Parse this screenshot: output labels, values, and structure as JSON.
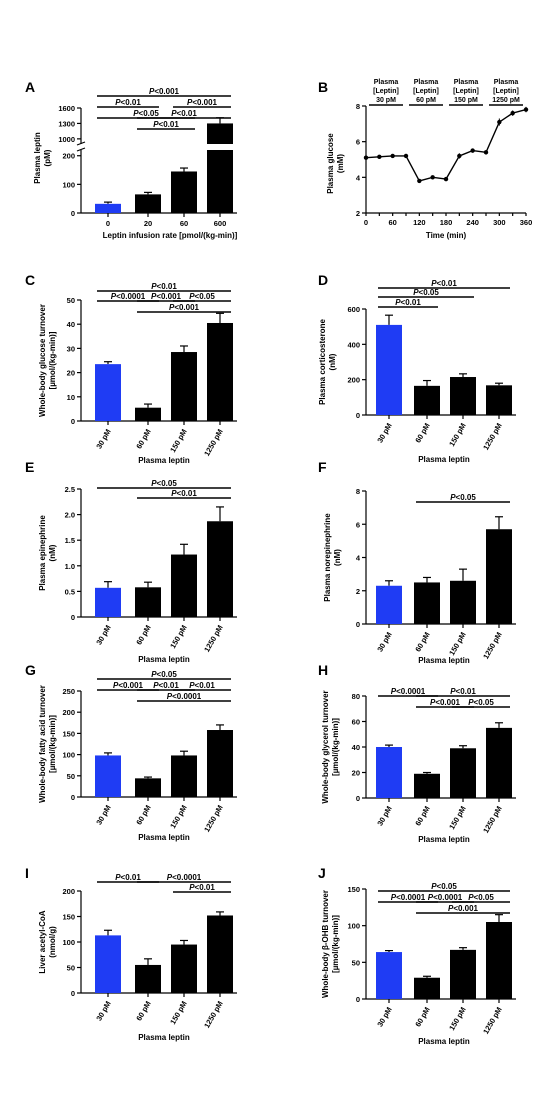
{
  "colors": {
    "blue": "#1f3cf4",
    "black": "#000000"
  },
  "chart_data": [
    {
      "panel": "A",
      "type": "bar",
      "categories": [
        "0",
        "20",
        "60",
        "600"
      ],
      "values": [
        32,
        65,
        145,
        1300
      ],
      "errors": [
        6,
        7,
        12,
        110
      ],
      "bar_colors": [
        "blue",
        "black",
        "black",
        "black"
      ],
      "xlabel": "Leptin infusion rate [pmol/(kg-min)]",
      "ylabel": "Plasma leptin",
      "yunit": "(pM)",
      "broken_axis": {
        "lower": [
          0,
          220
        ],
        "upper": [
          900,
          1600
        ]
      },
      "yticks": [
        "0",
        "100",
        "200",
        "1000",
        "1300",
        "1600"
      ],
      "sig": [
        {
          "from": 0,
          "to": 3,
          "label": "P<0.001"
        },
        {
          "from": 0,
          "to": 1,
          "label": "P<0.01"
        },
        {
          "from": 2,
          "to": 3,
          "label": "P<0.001"
        },
        {
          "from": 0,
          "to": 2,
          "label": "P<0.05"
        },
        {
          "from": 1,
          "to": 3,
          "label": "P<0.01"
        },
        {
          "from": 1,
          "to": 2,
          "label": "P<0.01"
        }
      ]
    },
    {
      "panel": "B",
      "type": "line",
      "x": [
        0,
        30,
        60,
        90,
        120,
        150,
        180,
        210,
        240,
        270,
        300,
        330,
        360
      ],
      "y": [
        5.1,
        5.15,
        5.2,
        5.2,
        3.8,
        4.0,
        3.9,
        5.2,
        5.5,
        5.4,
        7.1,
        7.6,
        7.8
      ],
      "errors": [
        0.15,
        0.1,
        0.08,
        0.08,
        0.08,
        0.08,
        0.08,
        0.15,
        0.12,
        0.1,
        0.2,
        0.15,
        0.15
      ],
      "xlabel": "Time (min)",
      "ylabel": "Plasma glucose",
      "yunit": "(mM)",
      "xlim": [
        0,
        360
      ],
      "ylim": [
        2,
        8
      ],
      "xticks": [
        "0",
        "30",
        "60",
        "90",
        "120",
        "150",
        "180",
        "210",
        "240",
        "270",
        "300",
        "330",
        "360"
      ],
      "yticks": [
        "2",
        "4",
        "6",
        "8"
      ],
      "phases": [
        {
          "from": 0,
          "to": 90,
          "lines": [
            "Plasma",
            "[Leptin]",
            "30 pM"
          ]
        },
        {
          "from": 90,
          "to": 180,
          "lines": [
            "Plasma",
            "[Leptin]",
            "60 pM"
          ]
        },
        {
          "from": 180,
          "to": 270,
          "lines": [
            "Plasma",
            "[Leptin]",
            "150 pM"
          ]
        },
        {
          "from": 270,
          "to": 360,
          "lines": [
            "Plasma",
            "[Leptin]",
            "1250 pM"
          ]
        }
      ]
    },
    {
      "panel": "C",
      "type": "bar",
      "categories": [
        "30 pM",
        "60 pM",
        "150 pM",
        "1250 pM"
      ],
      "values": [
        23.5,
        5.5,
        28.5,
        40.5
      ],
      "errors": [
        1,
        1.5,
        2.5,
        4
      ],
      "bar_colors": [
        "blue",
        "black",
        "black",
        "black"
      ],
      "xlabel": "Plasma leptin",
      "ylabel": "Whole-body glucose turnover",
      "yunit": "[µmol/(kg-min)]",
      "ylim": [
        0,
        50
      ],
      "yticks": [
        "0",
        "10",
        "20",
        "30",
        "40",
        "50"
      ],
      "sig": [
        {
          "from": 0,
          "to": 3,
          "label": "P<0.01"
        },
        {
          "from": 0,
          "to": 1,
          "label": "P<0.0001"
        },
        {
          "from": 1,
          "to": 2,
          "label": "P<0.001"
        },
        {
          "from": 2,
          "to": 3,
          "label": "P<0.05"
        },
        {
          "from": 1,
          "to": 3,
          "label": "P<0.001"
        }
      ]
    },
    {
      "panel": "D",
      "type": "bar",
      "categories": [
        "30 pM",
        "60 pM",
        "150 pM",
        "1250 pM"
      ],
      "values": [
        510,
        165,
        215,
        168
      ],
      "errors": [
        55,
        30,
        18,
        12
      ],
      "bar_colors": [
        "blue",
        "black",
        "black",
        "black"
      ],
      "xlabel": "Plasma leptin",
      "ylabel": "Plasma corticosterone",
      "yunit": "(nM)",
      "ylim": [
        0,
        600
      ],
      "yticks": [
        "0",
        "200",
        "400",
        "600"
      ],
      "sig": [
        {
          "from": 0,
          "to": 3,
          "label": "P<0.01"
        },
        {
          "from": 0,
          "to": 2,
          "label": "P<0.05"
        },
        {
          "from": 0,
          "to": 1,
          "label": "P<0.01"
        }
      ]
    },
    {
      "panel": "E",
      "type": "bar",
      "categories": [
        "30 pM",
        "60 pM",
        "150 pM",
        "1250 pM"
      ],
      "values": [
        0.57,
        0.58,
        1.22,
        1.87
      ],
      "errors": [
        0.12,
        0.1,
        0.2,
        0.28
      ],
      "bar_colors": [
        "blue",
        "black",
        "black",
        "black"
      ],
      "xlabel": "Plasma leptin",
      "ylabel": "Plasma epinephrine",
      "yunit": "(nM)",
      "ylim": [
        0,
        2.5
      ],
      "yticks": [
        "0",
        "0.5",
        "1.0",
        "1.5",
        "2.0",
        "2.5"
      ],
      "sig": [
        {
          "from": 0,
          "to": 3,
          "label": "P<0.05"
        },
        {
          "from": 1,
          "to": 3,
          "label": "P<0.01"
        }
      ]
    },
    {
      "panel": "F",
      "type": "bar",
      "categories": [
        "30 pM",
        "60 pM",
        "150 pM",
        "1250 pM"
      ],
      "values": [
        2.3,
        2.5,
        2.6,
        5.7
      ],
      "errors": [
        0.3,
        0.3,
        0.7,
        0.75
      ],
      "bar_colors": [
        "blue",
        "black",
        "black",
        "black"
      ],
      "xlabel": "Plasma leptin",
      "ylabel": "Plasma norepinephrine",
      "yunit": "(nM)",
      "ylim": [
        0,
        8
      ],
      "yticks": [
        "0",
        "2",
        "4",
        "6",
        "8"
      ],
      "sig": [
        {
          "from": 1,
          "to": 3,
          "label": "P<0.05"
        }
      ]
    },
    {
      "panel": "G",
      "type": "bar",
      "categories": [
        "30 pM",
        "60 pM",
        "150 pM",
        "1250 pM"
      ],
      "values": [
        98,
        44,
        98,
        158
      ],
      "errors": [
        6,
        3,
        10,
        12
      ],
      "bar_colors": [
        "blue",
        "black",
        "black",
        "black"
      ],
      "xlabel": "Plasma leptin",
      "ylabel": "Whole-body fatty acid turnover",
      "yunit": "[µmol/(kg-min)]",
      "ylim": [
        0,
        250
      ],
      "yticks": [
        "0",
        "50",
        "100",
        "150",
        "200",
        "250"
      ],
      "sig": [
        {
          "from": 0,
          "to": 3,
          "label": "P<0.05"
        },
        {
          "from": 0,
          "to": 1,
          "label": "P<0.001"
        },
        {
          "from": 1,
          "to": 2,
          "label": "P<0.01"
        },
        {
          "from": 2,
          "to": 3,
          "label": "P<0.01"
        },
        {
          "from": 1,
          "to": 3,
          "label": "P<0.0001"
        }
      ]
    },
    {
      "panel": "H",
      "type": "bar",
      "categories": [
        "30 pM",
        "60 pM",
        "150 pM",
        "1250 pM"
      ],
      "values": [
        40,
        19,
        39,
        55
      ],
      "errors": [
        1.5,
        1,
        2,
        4
      ],
      "bar_colors": [
        "blue",
        "black",
        "black",
        "black"
      ],
      "xlabel": "Plasma leptin",
      "ylabel": "Whole-body glycerol turnover",
      "yunit": "[µmol/(kg-min)]",
      "ylim": [
        0,
        80
      ],
      "yticks": [
        "0",
        "20",
        "40",
        "60",
        "80"
      ],
      "sig": [
        {
          "from": 0,
          "to": 1,
          "label": "P<0.0001"
        },
        {
          "from": 1,
          "to": 3,
          "label": "P<0.01"
        },
        {
          "from": 1,
          "to": 2,
          "label": "P<0.001"
        },
        {
          "from": 2,
          "to": 3,
          "label": "P<0.05"
        }
      ]
    },
    {
      "panel": "I",
      "type": "bar",
      "categories": [
        "30 pM",
        "60 pM",
        "150 pM",
        "1250 pM"
      ],
      "values": [
        113,
        55,
        95,
        152
      ],
      "errors": [
        10,
        12,
        8,
        7
      ],
      "bar_colors": [
        "blue",
        "black",
        "black",
        "black"
      ],
      "xlabel": "Plasma leptin",
      "ylabel": "Liver acetyl-CoA",
      "yunit": "(nmol/g)",
      "ylim": [
        0,
        200
      ],
      "yticks": [
        "0",
        "50",
        "100",
        "150",
        "200"
      ],
      "sig": [
        {
          "from": 0,
          "to": 1,
          "label": "P<0.01"
        },
        {
          "from": 1,
          "to": 3,
          "label": "P<0.0001"
        },
        {
          "from": 2,
          "to": 3,
          "label": "P<0.01"
        }
      ]
    },
    {
      "panel": "J",
      "type": "bar",
      "categories": [
        "30 pM",
        "60 pM",
        "150 pM",
        "1250 pM"
      ],
      "values": [
        64,
        29,
        67,
        105
      ],
      "errors": [
        2,
        2,
        3,
        10
      ],
      "bar_colors": [
        "blue",
        "black",
        "black",
        "black"
      ],
      "xlabel": "Plasma leptin",
      "ylabel": "Whole-body β-OHB turnover",
      "yunit": "[µmol/(kg-min)]",
      "ylim": [
        0,
        150
      ],
      "yticks": [
        "0",
        "50",
        "100",
        "150"
      ],
      "sig": [
        {
          "from": 0,
          "to": 3,
          "label": "P<0.05"
        },
        {
          "from": 0,
          "to": 1,
          "label": "P<0.0001"
        },
        {
          "from": 1,
          "to": 2,
          "label": "P<0.0001"
        },
        {
          "from": 2,
          "to": 3,
          "label": "P<0.05"
        },
        {
          "from": 1,
          "to": 3,
          "label": "P<0.001"
        }
      ]
    }
  ]
}
